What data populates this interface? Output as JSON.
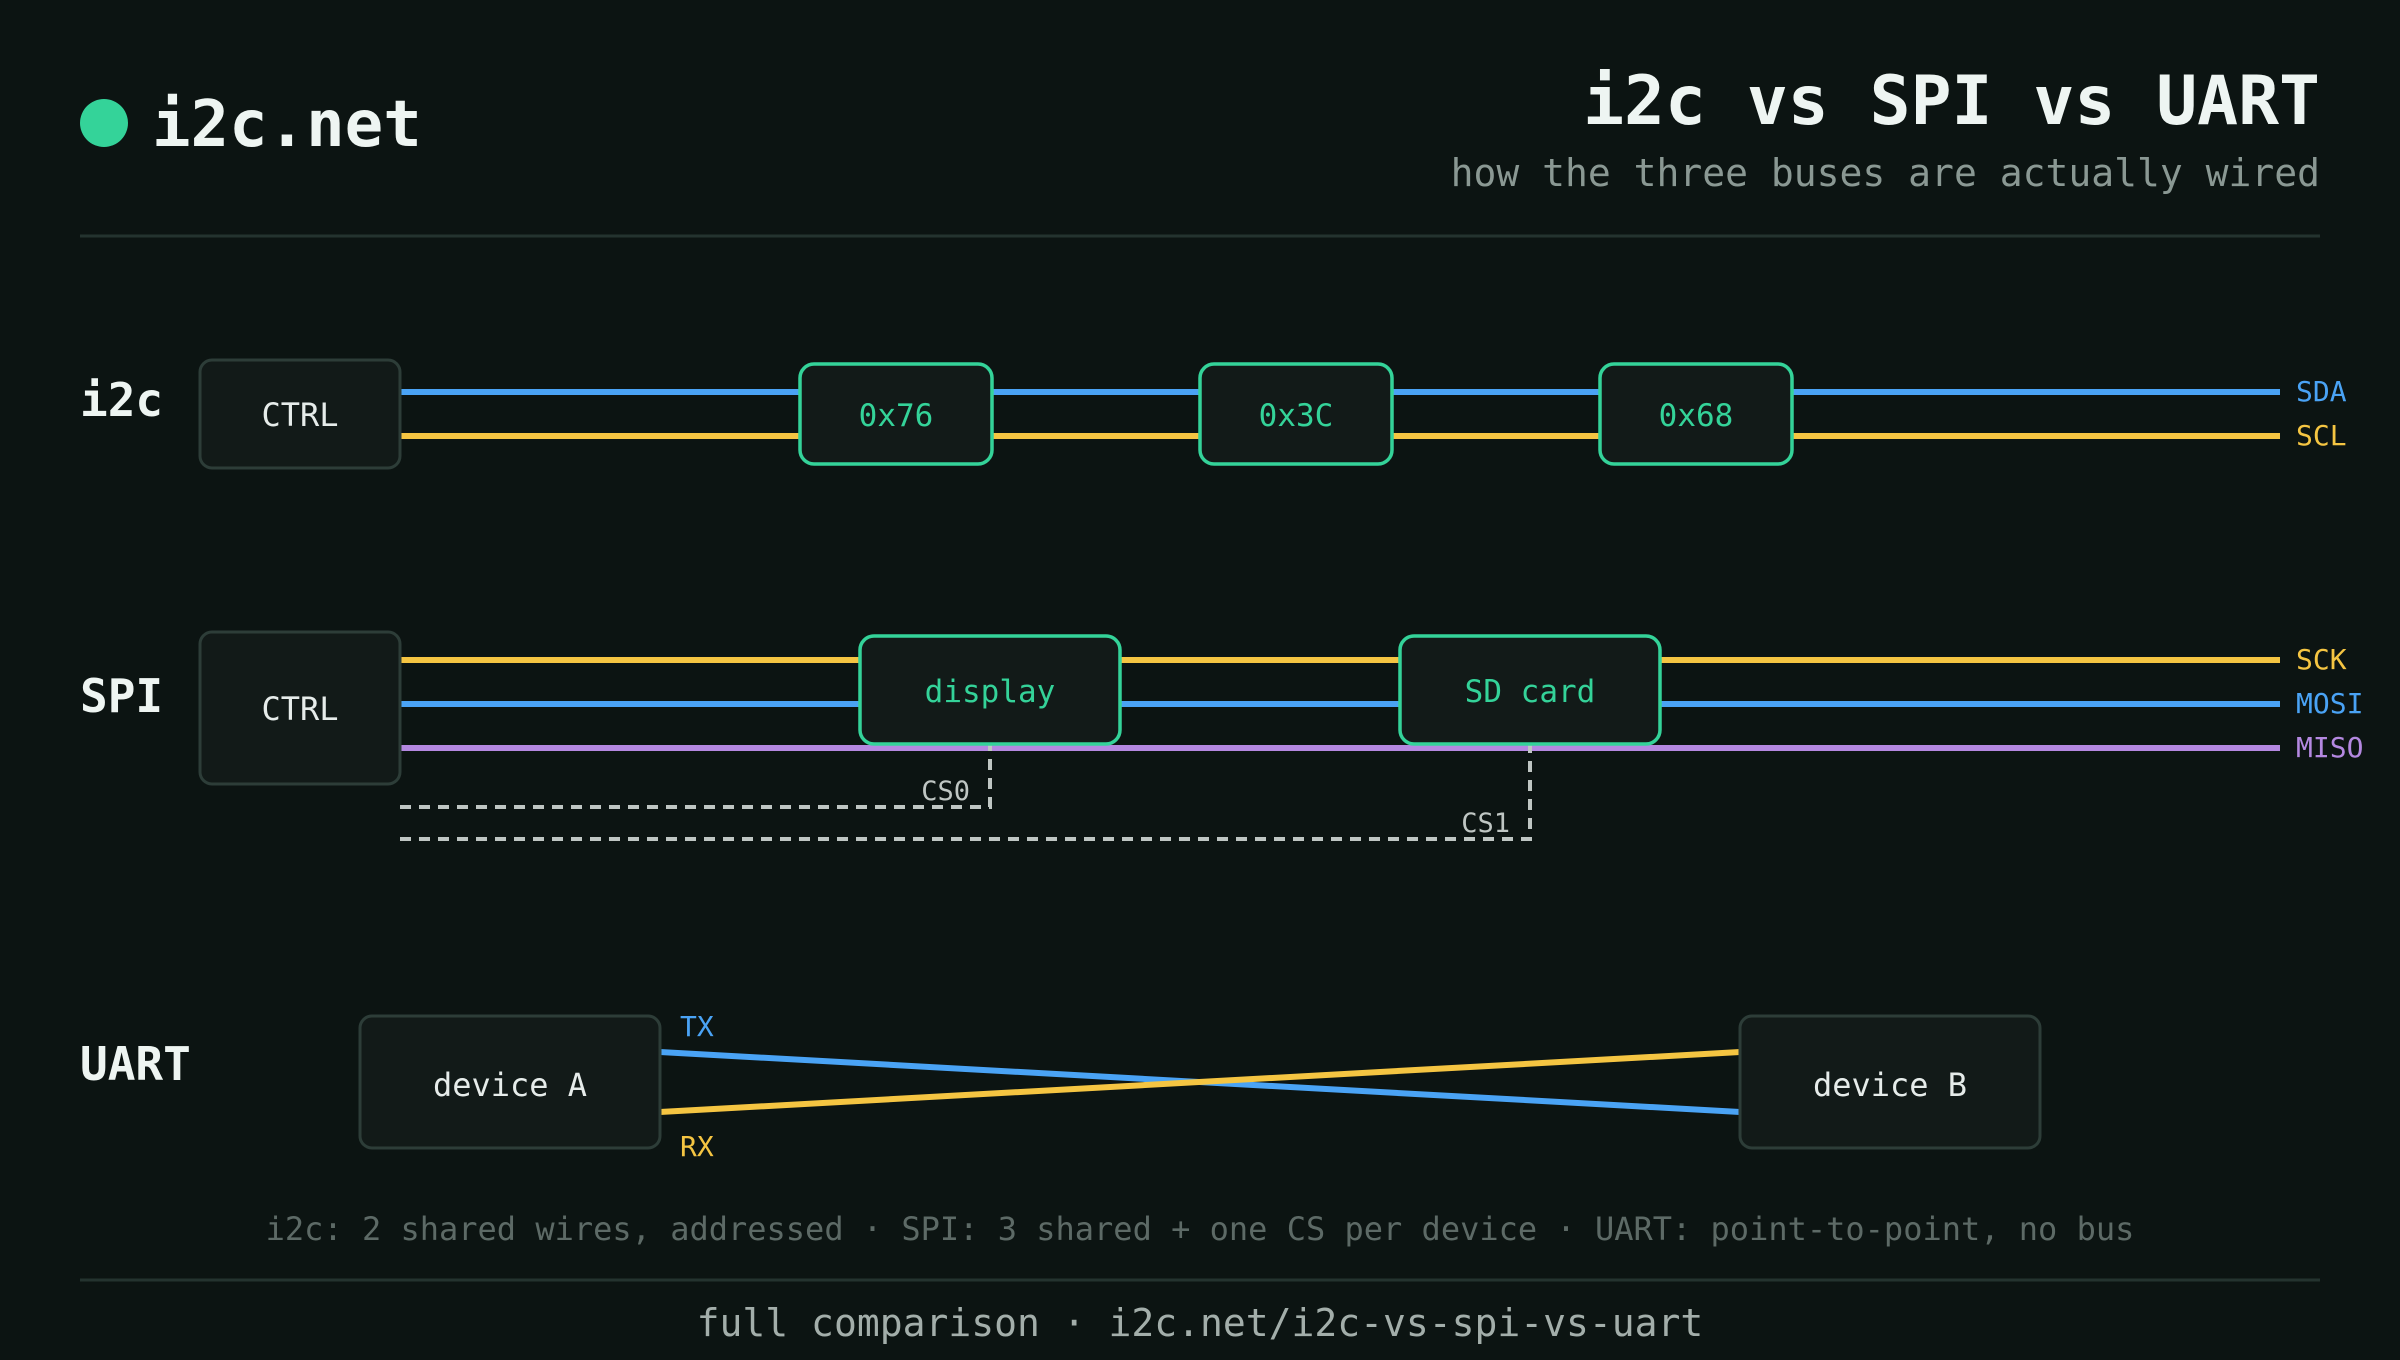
{
  "brand": {
    "name": "i2c.net"
  },
  "header": {
    "title": "i2c vs SPI vs UART",
    "subtitle": "how the three buses are actually wired"
  },
  "colors": {
    "background": "#0c1412",
    "accent": "#34d399",
    "blue_wire": "#4aa3f5",
    "yellow_wire": "#f5c542",
    "purple_wire": "#b488e0",
    "chip_select": "#bfc6c3"
  },
  "i2c": {
    "label": "i2c",
    "controller": "CTRL",
    "devices": [
      "0x76",
      "0x3C",
      "0x68"
    ],
    "wires": [
      {
        "name": "SDA",
        "color": "#4aa3f5"
      },
      {
        "name": "SCL",
        "color": "#f5c542"
      }
    ]
  },
  "spi": {
    "label": "SPI",
    "controller": "CTRL",
    "devices": [
      "display",
      "SD card"
    ],
    "wires": [
      {
        "name": "SCK",
        "color": "#f5c542"
      },
      {
        "name": "MOSI",
        "color": "#4aa3f5"
      },
      {
        "name": "MISO",
        "color": "#b488e0"
      }
    ],
    "chip_selects": [
      "CS0",
      "CS1"
    ]
  },
  "uart": {
    "label": "UART",
    "device_a": "device A",
    "device_b": "device B",
    "tx": {
      "name": "TX",
      "color": "#4aa3f5"
    },
    "rx": {
      "name": "RX",
      "color": "#f5c542"
    }
  },
  "note": "i2c: 2 shared wires, addressed · SPI: 3 shared + one CS per device · UART: point-to-point, no bus",
  "footer": "full comparison · i2c.net/i2c-vs-spi-vs-uart"
}
